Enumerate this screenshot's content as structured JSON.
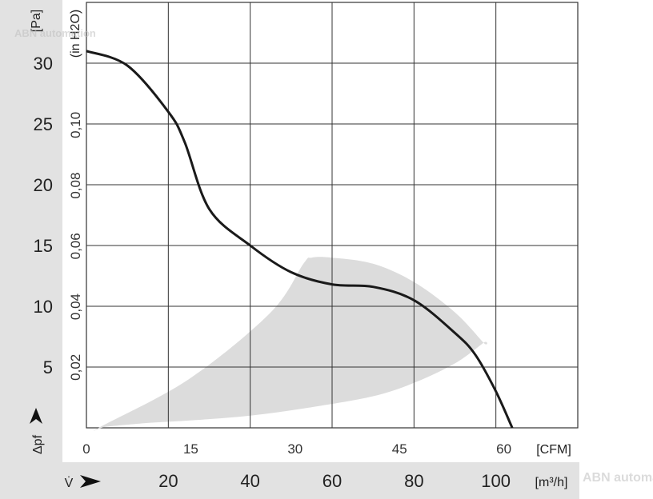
{
  "chart_data": {
    "type": "line",
    "watermark": "ABN automation",
    "axis_left_pa": {
      "unit_label": "[Pa]",
      "ticks": [
        5,
        10,
        15,
        20,
        25,
        30
      ],
      "label": "Δpf"
    },
    "axis_inner_inh2o": {
      "unit_label": "(in H2O)",
      "ticks": [
        "0,02",
        "0,04",
        "0,06",
        "0,08",
        "0,10"
      ],
      "tick_values": [
        0.02,
        0.04,
        0.06,
        0.08,
        0.1
      ]
    },
    "axis_cfm": {
      "unit_label": "[CFM]",
      "ticks": [
        0,
        15,
        30,
        45,
        60
      ],
      "range": [
        0,
        70
      ]
    },
    "axis_m3h": {
      "unit_label": "[m³/h]",
      "ticks": [
        20,
        40,
        60,
        80,
        100
      ],
      "label": "V̇"
    },
    "ylim_pa": [
      0,
      35
    ],
    "xlim_m3h": [
      0,
      120
    ],
    "grid": true,
    "series": [
      {
        "x_m3h": [
          0,
          10,
          20,
          24,
          30,
          40,
          50,
          60,
          70,
          80,
          90,
          95,
          100,
          104
        ],
        "y_pa": [
          31,
          29.8,
          26,
          23.5,
          18,
          15,
          12.8,
          11.8,
          11.6,
          10.5,
          7.8,
          6,
          3,
          0
        ]
      }
    ],
    "operating_range": {
      "upper_x_m3h": [
        3,
        25,
        45,
        53,
        55,
        60,
        70,
        80,
        90,
        97
      ],
      "upper_y_pa": [
        0,
        4,
        9.5,
        13.5,
        14,
        14,
        13.5,
        12,
        9.5,
        7
      ],
      "lower_x_m3h": [
        97,
        90,
        80,
        70,
        55,
        40,
        25,
        15,
        5
      ],
      "lower_y_pa": [
        7,
        5.3,
        3.7,
        2.6,
        1.7,
        1,
        0.6,
        0.4,
        0.1
      ]
    }
  }
}
